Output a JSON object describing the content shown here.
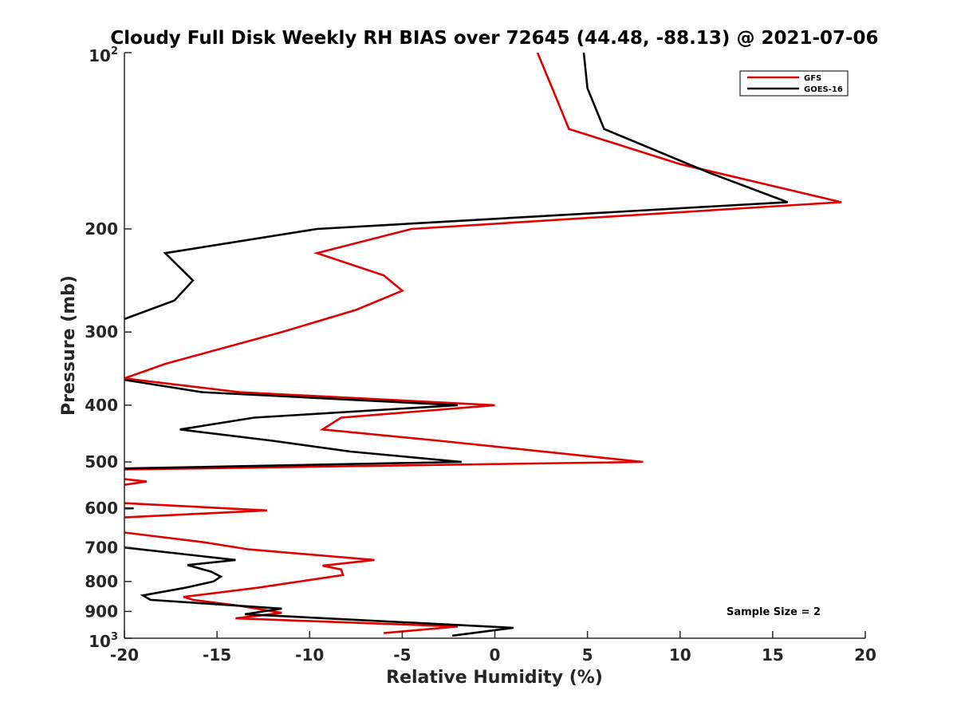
{
  "chart_data": {
    "type": "line",
    "title": "Cloudy Full Disk Weekly RH BIAS over 72645 (44.48, -88.13) @ 2021-07-06",
    "xlabel": "Relative Humidity (%)",
    "ylabel": "Pressure (mb)",
    "xlim": [
      -20,
      20
    ],
    "ylim": [
      100,
      1000
    ],
    "yscale": "log",
    "yreversed": true,
    "grid": false,
    "legend_position": "top-right",
    "x_ticks": [
      "-20",
      "-15",
      "-10",
      "-5",
      "0",
      "5",
      "10",
      "15",
      "20"
    ],
    "x_tick_values": [
      -20,
      -15,
      -10,
      -5,
      0,
      5,
      10,
      15,
      20
    ],
    "y_ticks_plain": [
      "200",
      "300",
      "400",
      "500",
      "600",
      "700",
      "800",
      "900"
    ],
    "y_tick_values_plain": [
      200,
      300,
      400,
      500,
      600,
      700,
      800,
      900
    ],
    "y_tick_top": {
      "base": "10",
      "exp": "2"
    },
    "y_tick_bottom": {
      "base": "10",
      "exp": "3"
    },
    "annotation": "Sample Size = 2",
    "series": [
      {
        "name": "GFS",
        "color": "#e00000",
        "segments": [
          [
            [
              2.3,
              100
            ],
            [
              3.1,
              115
            ],
            [
              4.0,
              135
            ],
            [
              10.0,
              155
            ],
            [
              18.7,
              180
            ],
            [
              -4.5,
              200
            ],
            [
              -9.6,
              220
            ],
            [
              -6.0,
              240
            ],
            [
              -5.0,
              255
            ],
            [
              -7.5,
              275
            ],
            [
              -11.5,
              300
            ],
            [
              -17.8,
              340
            ],
            [
              -20.0,
              360
            ],
            [
              -13.8,
              380
            ],
            [
              0.0,
              400
            ],
            [
              -8.3,
              420
            ],
            [
              -9.3,
              440
            ],
            [
              -3.0,
              460
            ],
            [
              8.0,
              500
            ],
            [
              -20.0,
              515
            ]
          ],
          [
            [
              -20.0,
              535
            ],
            [
              -18.8,
              540
            ],
            [
              -20.0,
              547
            ]
          ],
          [
            [
              -20.0,
              588
            ],
            [
              -12.3,
              605
            ],
            [
              -20.0,
              622
            ]
          ],
          [
            [
              -20.0,
              660
            ],
            [
              -15.8,
              685
            ],
            [
              -13.3,
              705
            ],
            [
              -6.5,
              735
            ],
            [
              -9.3,
              752
            ],
            [
              -8.3,
              763
            ],
            [
              -8.2,
              780
            ],
            [
              -12.8,
              820
            ],
            [
              -16.8,
              850
            ],
            [
              -16.3,
              860
            ],
            [
              -13.8,
              880
            ],
            [
              -11.5,
              905
            ],
            [
              -14.0,
              925
            ],
            [
              -2.0,
              955
            ],
            [
              -6.0,
              980
            ]
          ]
        ]
      },
      {
        "name": "GOES-16",
        "color": "#000000",
        "segments": [
          [
            [
              4.8,
              100
            ],
            [
              5.0,
              115
            ],
            [
              5.9,
              135
            ],
            [
              11.5,
              160
            ],
            [
              15.8,
              180
            ],
            [
              -9.6,
              200
            ],
            [
              -17.8,
              220
            ],
            [
              -16.3,
              245
            ],
            [
              -17.3,
              265
            ],
            [
              -20.0,
              285
            ]
          ],
          [
            [
              -20.0,
              362
            ],
            [
              -15.8,
              380
            ],
            [
              -2.0,
              400
            ],
            [
              -13.0,
              420
            ],
            [
              -17.0,
              440
            ],
            [
              -12.0,
              460
            ],
            [
              -7.8,
              480
            ],
            [
              -1.8,
              500
            ],
            [
              -20.0,
              513
            ]
          ],
          [
            [
              -20.0,
              600
            ],
            [
              -19.5,
              600
            ]
          ],
          [
            [
              -20.0,
              700
            ],
            [
              -14.0,
              735
            ],
            [
              -16.6,
              750
            ],
            [
              -15.3,
              770
            ],
            [
              -14.8,
              785
            ],
            [
              -15.2,
              800
            ],
            [
              -16.7,
              820
            ],
            [
              -19.0,
              845
            ],
            [
              -18.6,
              860
            ],
            [
              -15.0,
              875
            ],
            [
              -11.5,
              890
            ],
            [
              -13.5,
              910
            ],
            [
              1.0,
              960
            ],
            [
              -2.3,
              990
            ]
          ]
        ]
      }
    ]
  }
}
